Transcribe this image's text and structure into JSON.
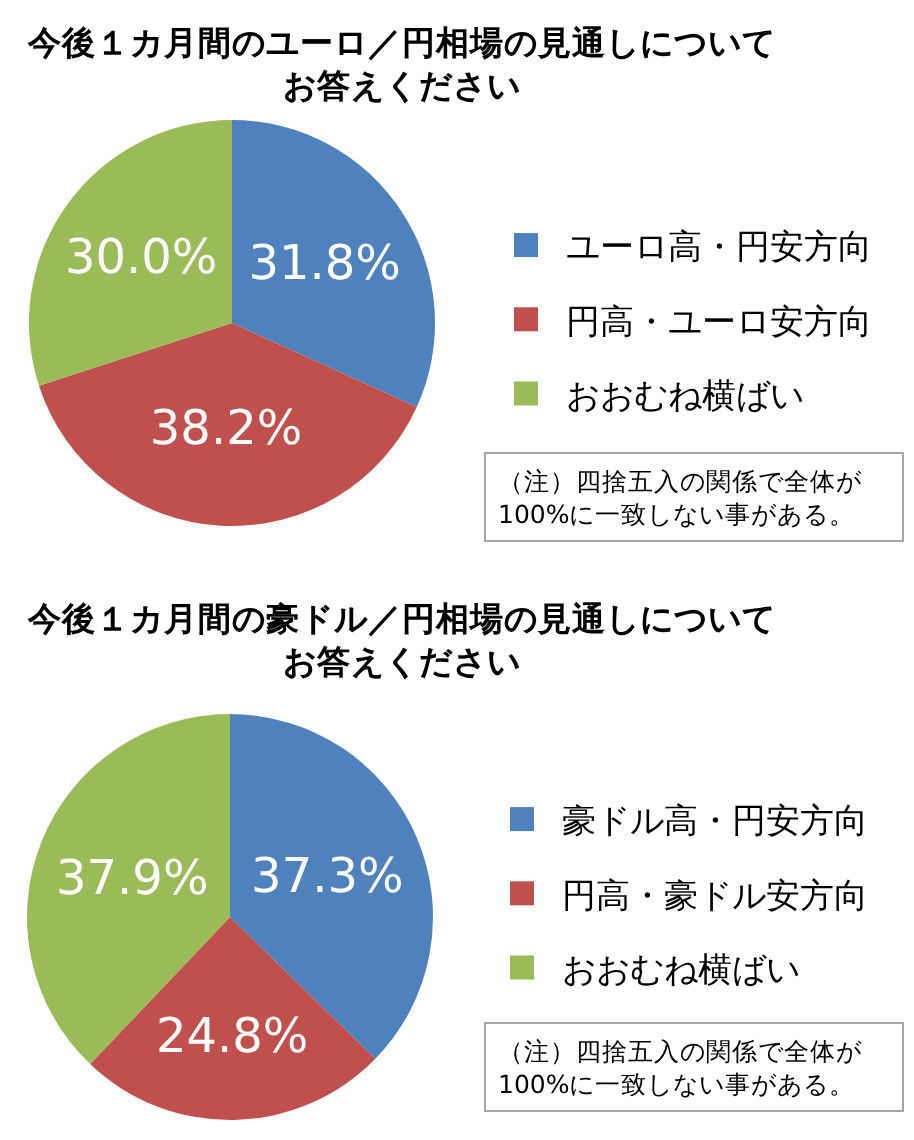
{
  "chart_data": [
    {
      "type": "pie",
      "title": "今後１カ月間のユーロ／円相場の見通しについてお答えください",
      "categories": [
        "ユーロ高・円安方向",
        "円高・ユーロ安方向",
        "おおむね横ばい"
      ],
      "values": [
        31.8,
        38.2,
        30.0
      ],
      "value_labels": [
        "31.8%",
        "38.2%",
        "30.0%"
      ],
      "colors": [
        "#4f81bd",
        "#c0504d",
        "#9bbb59"
      ],
      "legend": "right",
      "annotations": [
        "（注）四捨五入の関係で全体が100%に一致しない事がある。"
      ]
    },
    {
      "type": "pie",
      "title": "今後１カ月間の豪ドル／円相場の見通しについてお答えください",
      "categories": [
        "豪ドル高・円安方向",
        "円高・豪ドル安方向",
        "おおむね横ばい"
      ],
      "values": [
        37.3,
        24.8,
        37.9
      ],
      "value_labels": [
        "37.3%",
        "24.8%",
        "37.9%"
      ],
      "colors": [
        "#4f81bd",
        "#c0504d",
        "#9bbb59"
      ],
      "legend": "right",
      "annotations": [
        "（注）四捨五入の関係で全体が100%に一致しない事がある。"
      ]
    }
  ]
}
